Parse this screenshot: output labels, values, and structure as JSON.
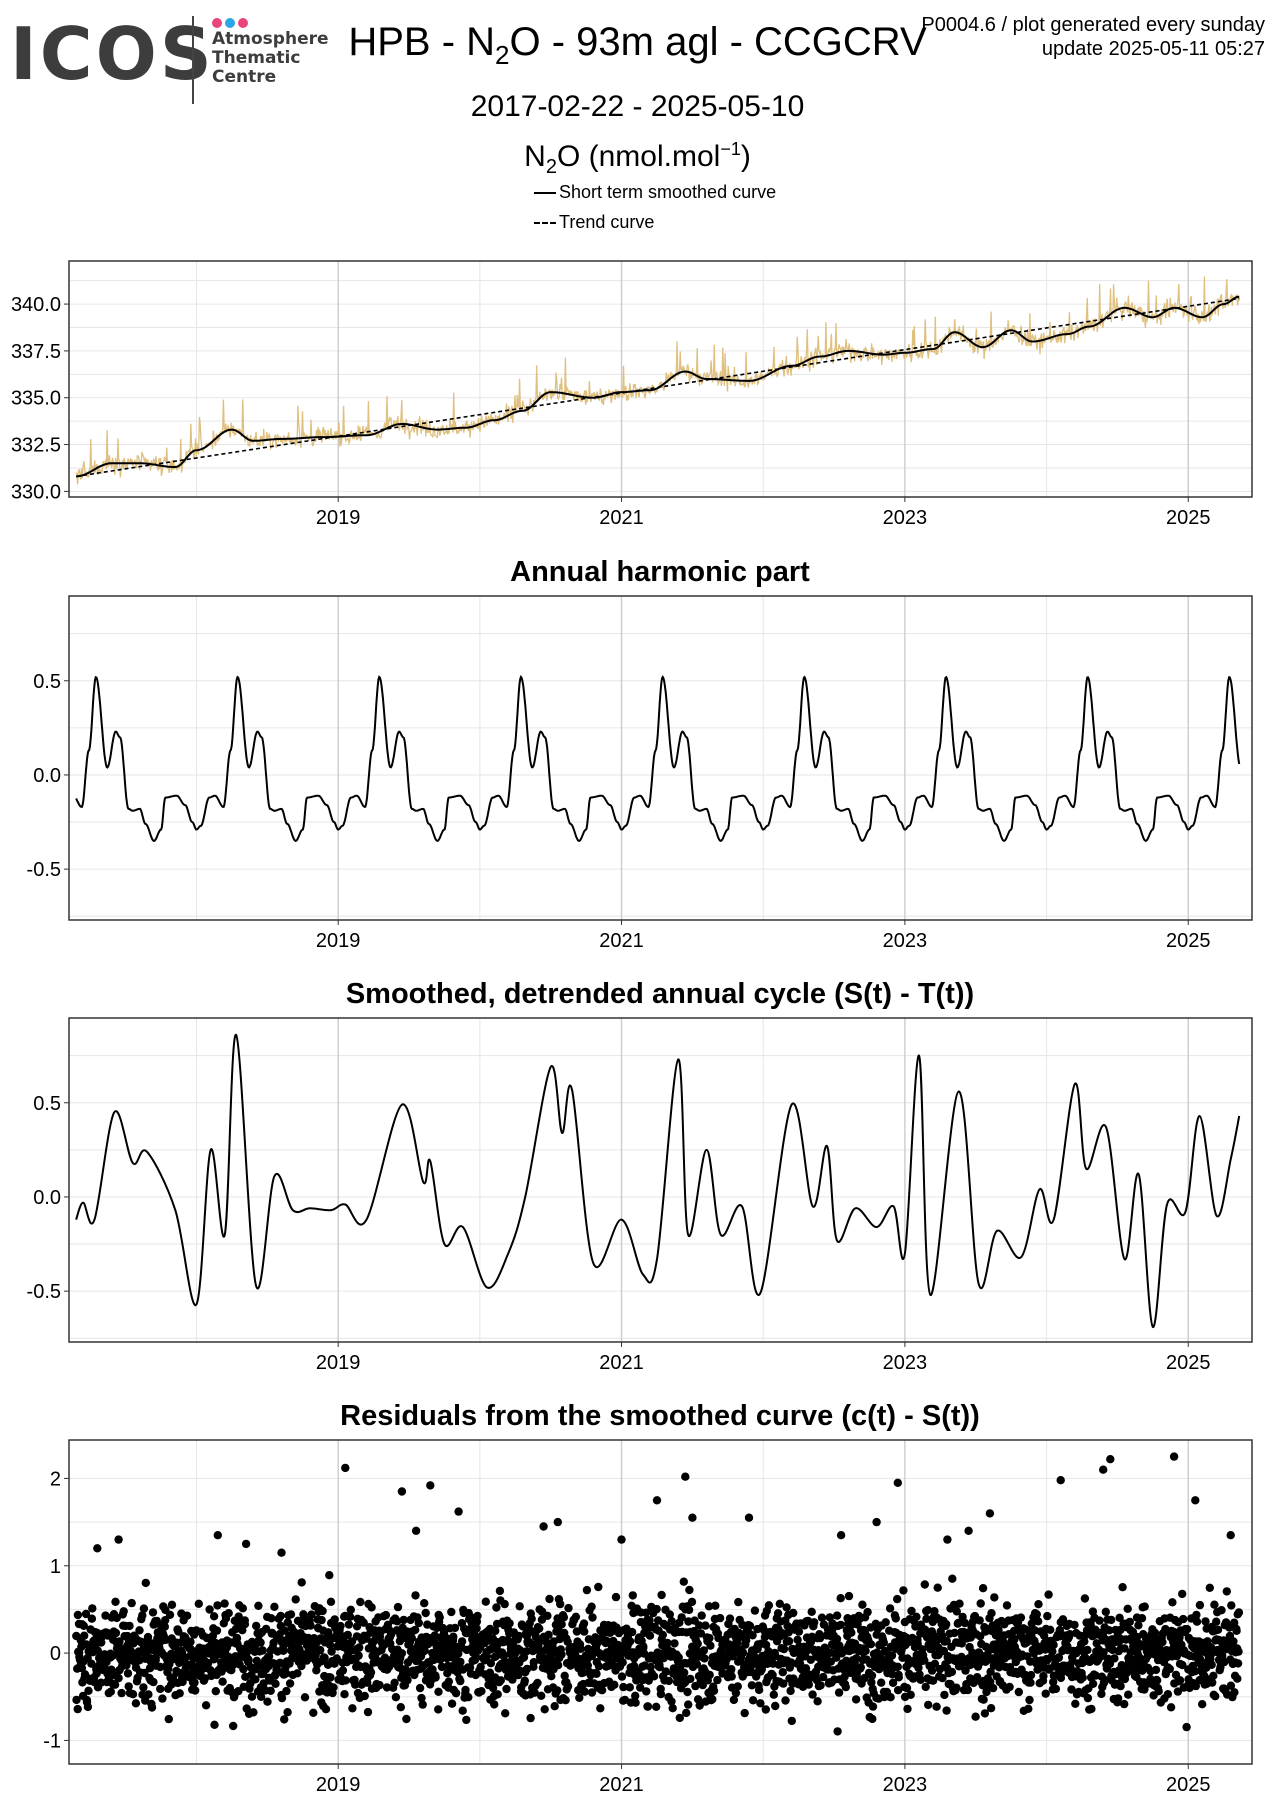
{
  "logo": {
    "brand": "ICOS",
    "lines": [
      "Atmosphere",
      "Thematic",
      "Centre"
    ],
    "dot_colors": [
      "#e8457a",
      "#2aa6e6",
      "#e8457a"
    ]
  },
  "header": {
    "title_prefix": "HPB - N",
    "title_sub": "2",
    "title_suffix": "O - 93m agl - CCGCRV",
    "code_line": "P0004.6 / plot generated every sunday",
    "update_line": "update  2025-05-11 05:27",
    "date_range": "2017-02-22 - 2025-05-10",
    "ylabel_prefix": "N",
    "ylabel_sub": "2",
    "ylabel_mid": "O (nmol.mol",
    "ylabel_sup": "−1",
    "ylabel_end": ")"
  },
  "legend": {
    "solid_label": "Short term smoothed curve",
    "dashed_label": "Trend curve"
  },
  "colors": {
    "observations": "#dfc07f",
    "curve": "#000000",
    "grid": "#e6e6e6",
    "grid_major": "#cccccc"
  },
  "chart_data": [
    {
      "type": "line",
      "panel": "timeseries",
      "x_ticks": [
        "2019",
        "2021",
        "2023",
        "2025"
      ],
      "y_ticks": [
        "330.0",
        "332.5",
        "335.0",
        "337.5",
        "340.0"
      ],
      "xlim": [
        2017.1,
        2025.45
      ],
      "ylim": [
        329.7,
        342.3
      ],
      "grid": true,
      "trend": {
        "x": [
          2017.15,
          2025.36
        ],
        "y": [
          330.8,
          340.3
        ]
      },
      "smoothed": {
        "x": [
          2017.15,
          2017.4,
          2017.6,
          2017.85,
          2018.0,
          2018.25,
          2018.4,
          2018.6,
          2018.9,
          2019.2,
          2019.45,
          2019.7,
          2019.9,
          2020.1,
          2020.3,
          2020.5,
          2020.8,
          2021.0,
          2021.2,
          2021.45,
          2021.6,
          2021.9,
          2022.2,
          2022.4,
          2022.6,
          2022.85,
          2023.0,
          2023.2,
          2023.35,
          2023.55,
          2023.75,
          2023.9,
          2024.15,
          2024.3,
          2024.55,
          2024.75,
          2024.9,
          2025.1,
          2025.25,
          2025.36
        ],
        "y": [
          330.8,
          331.5,
          331.5,
          331.3,
          332.2,
          333.3,
          332.7,
          332.8,
          332.9,
          333.0,
          333.6,
          333.3,
          333.4,
          333.8,
          334.3,
          335.3,
          335.0,
          335.3,
          335.4,
          336.4,
          336.0,
          335.9,
          336.7,
          337.2,
          337.5,
          337.3,
          337.4,
          337.6,
          338.5,
          337.7,
          338.6,
          338.0,
          338.4,
          338.8,
          339.8,
          339.3,
          339.8,
          339.3,
          340.0,
          340.4
        ]
      }
    },
    {
      "type": "line",
      "title": "Annual harmonic part",
      "x_ticks": [
        "2019",
        "2021",
        "2023",
        "2025"
      ],
      "y_ticks": [
        "-0.5",
        "0.0",
        "0.5"
      ],
      "xlim": [
        2017.1,
        2025.45
      ],
      "ylim": [
        -0.77,
        0.95
      ],
      "grid": true,
      "period_years": 1,
      "cycle": {
        "phase": [
          0.0,
          0.03,
          0.09,
          0.13,
          0.19,
          0.24,
          0.29,
          0.37,
          0.43,
          0.46,
          0.52,
          0.55,
          0.6,
          0.64,
          0.7,
          0.75,
          0.78,
          0.86,
          0.92,
          0.97,
          1.0
        ],
        "value": [
          -0.29,
          -0.27,
          -0.12,
          -0.11,
          -0.17,
          0.13,
          0.52,
          0.04,
          0.23,
          0.2,
          -0.18,
          -0.19,
          -0.18,
          -0.26,
          -0.35,
          -0.29,
          -0.12,
          -0.11,
          -0.16,
          -0.25,
          -0.29
        ]
      }
    },
    {
      "type": "line",
      "title": "Smoothed, detrended annual cycle (S(t) - T(t))",
      "x_ticks": [
        "2019",
        "2021",
        "2023",
        "2025"
      ],
      "y_ticks": [
        "-0.5",
        "0.0",
        "0.5"
      ],
      "xlim": [
        2017.1,
        2025.45
      ],
      "ylim": [
        -0.77,
        0.95
      ],
      "grid": true,
      "x": [
        2017.15,
        2017.2,
        2017.28,
        2017.42,
        2017.55,
        2017.65,
        2017.85,
        2018.0,
        2018.1,
        2018.2,
        2018.28,
        2018.42,
        2018.55,
        2018.68,
        2018.8,
        2018.95,
        2019.05,
        2019.2,
        2019.45,
        2019.6,
        2019.65,
        2019.75,
        2019.88,
        2020.05,
        2020.2,
        2020.32,
        2020.5,
        2020.58,
        2020.65,
        2020.8,
        2021.0,
        2021.15,
        2021.25,
        2021.4,
        2021.47,
        2021.6,
        2021.7,
        2021.85,
        2021.98,
        2022.2,
        2022.35,
        2022.45,
        2022.52,
        2022.65,
        2022.8,
        2022.92,
        2023.0,
        2023.1,
        2023.18,
        2023.38,
        2023.52,
        2023.65,
        2023.82,
        2023.95,
        2024.05,
        2024.2,
        2024.28,
        2024.42,
        2024.55,
        2024.65,
        2024.75,
        2024.85,
        2024.98,
        2025.08,
        2025.2,
        2025.3,
        2025.36
      ],
      "y": [
        -0.12,
        -0.03,
        -0.12,
        0.45,
        0.18,
        0.24,
        -0.07,
        -0.57,
        0.25,
        -0.2,
        0.86,
        -0.47,
        0.11,
        -0.07,
        -0.06,
        -0.07,
        -0.04,
        -0.12,
        0.49,
        0.08,
        0.19,
        -0.25,
        -0.16,
        -0.48,
        -0.3,
        0.0,
        0.69,
        0.34,
        0.57,
        -0.35,
        -0.12,
        -0.41,
        -0.33,
        0.73,
        -0.2,
        0.25,
        -0.2,
        -0.05,
        -0.51,
        0.49,
        -0.05,
        0.27,
        -0.23,
        -0.06,
        -0.16,
        -0.05,
        -0.3,
        0.75,
        -0.52,
        0.56,
        -0.46,
        -0.18,
        -0.32,
        0.04,
        -0.12,
        0.6,
        0.15,
        0.37,
        -0.33,
        0.12,
        -0.69,
        -0.04,
        -0.08,
        0.43,
        -0.1,
        0.2,
        0.43
      ]
    },
    {
      "type": "scatter",
      "title": "Residuals from the smoothed curve (c(t) - S(t))",
      "x_ticks": [
        "2019",
        "2021",
        "2023",
        "2025"
      ],
      "y_ticks": [
        "-1",
        "0",
        "1",
        "2"
      ],
      "xlim": [
        2017.1,
        2025.45
      ],
      "ylim": [
        -1.27,
        2.44
      ],
      "grid": true,
      "points_per_year": 340,
      "x_start": 2017.15,
      "x_end": 2025.36,
      "spread_sd": 0.4,
      "outliers": {
        "x": [
          2017.3,
          2017.45,
          2018.15,
          2018.35,
          2018.6,
          2019.05,
          2019.45,
          2019.55,
          2019.65,
          2019.85,
          2020.45,
          2020.55,
          2021.0,
          2021.25,
          2021.45,
          2021.5,
          2021.9,
          2022.55,
          2022.8,
          2022.95,
          2023.3,
          2023.45,
          2023.6,
          2024.1,
          2024.4,
          2024.45,
          2024.9,
          2025.05,
          2025.3
        ],
        "y": [
          1.2,
          1.3,
          1.35,
          1.25,
          1.15,
          2.12,
          1.85,
          1.4,
          1.92,
          1.62,
          1.45,
          1.5,
          1.3,
          1.75,
          2.02,
          1.55,
          1.55,
          1.35,
          1.5,
          1.95,
          1.3,
          1.4,
          1.6,
          1.98,
          2.1,
          2.22,
          2.25,
          1.75,
          1.35
        ]
      }
    }
  ]
}
